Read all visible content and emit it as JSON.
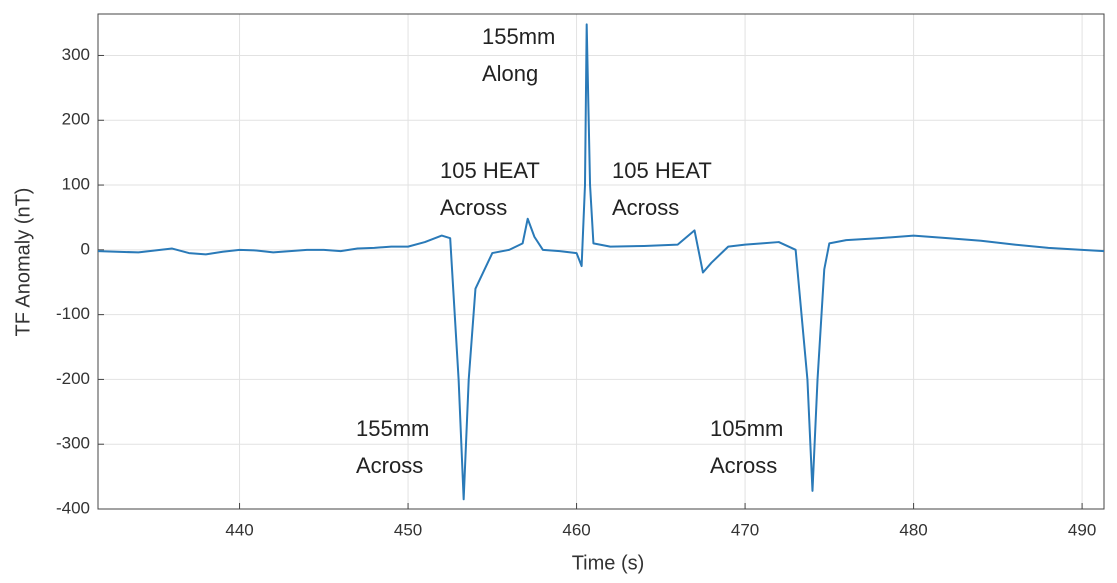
{
  "chart_data": {
    "type": "line",
    "xlabel": "Time (s)",
    "ylabel": "TF Anomaly (nT)",
    "x": [
      431.6,
      434,
      436,
      437,
      438,
      439,
      440,
      441,
      442,
      443,
      444,
      445,
      446,
      447,
      448,
      449,
      450,
      451,
      452,
      452.5,
      453,
      453.3,
      453.6,
      454,
      455,
      456,
      456.8,
      457.1,
      457.5,
      458,
      459,
      460,
      460.3,
      460.5,
      460.6,
      460.8,
      461,
      462,
      464,
      466,
      467,
      467.5,
      468,
      469,
      470,
      471,
      472,
      473,
      473.7,
      474,
      474.3,
      474.7,
      475,
      476,
      478,
      480,
      482,
      484,
      486,
      488,
      490,
      491.3
    ],
    "values": [
      -2,
      -4,
      2,
      -5,
      -7,
      -3,
      0,
      -1,
      -4,
      -2,
      0,
      0,
      -2,
      2,
      3,
      5,
      5,
      12,
      22,
      18,
      -200,
      -385,
      -200,
      -60,
      -5,
      0,
      10,
      48,
      20,
      0,
      -2,
      -5,
      -25,
      100,
      348,
      100,
      10,
      5,
      6,
      8,
      30,
      -35,
      -20,
      5,
      8,
      10,
      12,
      0,
      -200,
      -372,
      -200,
      -30,
      10,
      15,
      18,
      22,
      18,
      14,
      8,
      3,
      0,
      -2
    ],
    "color": "#2a7ab8",
    "xlim": [
      431.6,
      491.3
    ],
    "ylim": [
      -400,
      364
    ],
    "xticks": [
      440,
      450,
      460,
      470,
      480,
      490
    ],
    "yticks": [
      -400,
      -300,
      -200,
      -100,
      0,
      100,
      200,
      300
    ],
    "grid": true,
    "annotations": [
      [
        "155mm",
        "Along"
      ],
      [
        "105 HEAT",
        "Across"
      ],
      [
        "105 HEAT",
        "Across"
      ],
      [
        "155mm",
        "Across"
      ],
      [
        "105mm",
        "Across"
      ]
    ]
  }
}
